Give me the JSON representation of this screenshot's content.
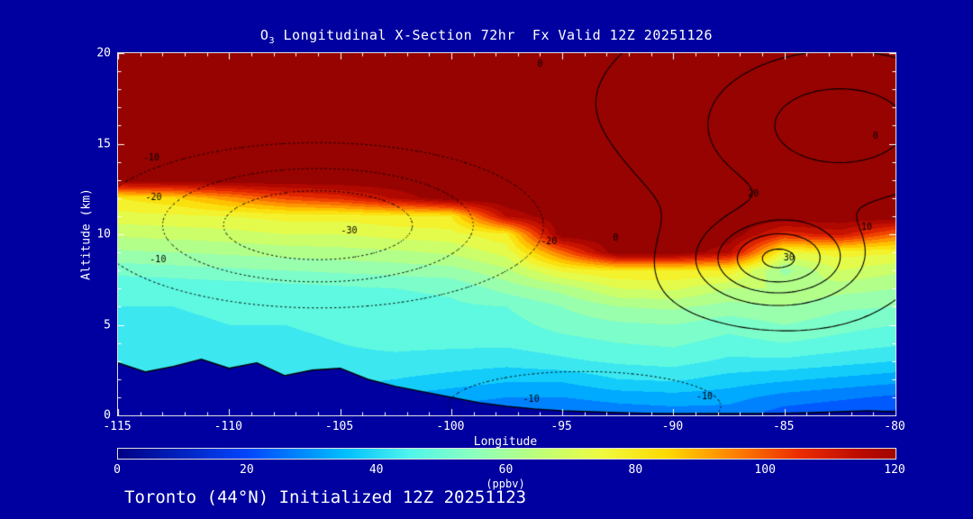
{
  "title": {
    "prefix": "O",
    "sub": "3",
    "rest": " Longitudinal X-Section 72hr  Fx Valid 12Z 20251126"
  },
  "footer": "Toronto (44°N) Initialized 12Z 20251123",
  "axes": {
    "x": {
      "label": "Longitude",
      "min": -115,
      "max": -80,
      "major_ticks": [
        -115,
        -110,
        -105,
        -100,
        -95,
        -90,
        -85,
        -80
      ],
      "minor_step": 1
    },
    "y": {
      "label": "Altitude (km)",
      "min": 0,
      "max": 20,
      "major_ticks": [
        0,
        5,
        10,
        15,
        20
      ],
      "minor_step": 1
    }
  },
  "colorbar": {
    "label": "(ppbv)",
    "min": 0,
    "max": 120,
    "ticks": [
      0,
      20,
      40,
      60,
      80,
      100,
      120
    ]
  },
  "colors": {
    "background": "#0000A0",
    "frame": "#E0E0E0",
    "text": "#FFFFFF",
    "contour": "#000000"
  },
  "chart_data": {
    "type": "heatmap",
    "title": "O3 Longitudinal X-Section 72hr Fx Valid 12Z 20251126",
    "xlabel": "Longitude",
    "ylabel": "Altitude (km)",
    "units": "ppbv",
    "xlim": [
      -115,
      -80
    ],
    "ylim": [
      0,
      20
    ],
    "lons": [
      -115,
      -112.5,
      -110,
      -107.5,
      -105,
      -102.5,
      -100,
      -97.5,
      -95,
      -92.5,
      -90,
      -87.5,
      -85,
      -82.5,
      -80
    ],
    "alts": [
      0,
      1,
      2,
      3,
      4,
      5,
      6,
      7,
      8,
      9,
      10,
      11,
      12,
      13,
      14,
      15,
      16,
      17,
      18,
      19,
      20
    ],
    "ozone_ppbv": [
      [
        30,
        29,
        30,
        31,
        32,
        28,
        26,
        25,
        24,
        26,
        27,
        27,
        22,
        20,
        18
      ],
      [
        35,
        34,
        36,
        37,
        38,
        34,
        32,
        30,
        30,
        32,
        33,
        32,
        28,
        26,
        24
      ],
      [
        40,
        40,
        41,
        42,
        42,
        40,
        38,
        36,
        36,
        40,
        41,
        38,
        36,
        34,
        32
      ],
      [
        45,
        42,
        43,
        43,
        44,
        44,
        43,
        42,
        44,
        46,
        47,
        44,
        44,
        42,
        40
      ],
      [
        45,
        42,
        44,
        44,
        45,
        46,
        46,
        46,
        48,
        50,
        51,
        48,
        50,
        48,
        46
      ],
      [
        45,
        44,
        45,
        45,
        46,
        47,
        48,
        48,
        52,
        54,
        55,
        52,
        55,
        52,
        50
      ],
      [
        45,
        45,
        46,
        46,
        47,
        48,
        49,
        50,
        55,
        60,
        61,
        58,
        60,
        56,
        55
      ],
      [
        45,
        46,
        47,
        48,
        49,
        50,
        51,
        57,
        62,
        70,
        71,
        65,
        65,
        62,
        60
      ],
      [
        52,
        53,
        54,
        55,
        56,
        57,
        58,
        64,
        76,
        80,
        80,
        79,
        58,
        70,
        66
      ],
      [
        59,
        60,
        61,
        62,
        63,
        64,
        66,
        72,
        98,
        125,
        125,
        116,
        75,
        77,
        76
      ],
      [
        66,
        67,
        68,
        70,
        70,
        72,
        73,
        79,
        125,
        125,
        125,
        125,
        107,
        112,
        98
      ],
      [
        73,
        74,
        75,
        77,
        77,
        79,
        80,
        116,
        125,
        125,
        125,
        125,
        125,
        125,
        125
      ],
      [
        80,
        84,
        93,
        102,
        107,
        116,
        125,
        125,
        125,
        125,
        125,
        125,
        125,
        125,
        125
      ],
      [
        125,
        125,
        125,
        125,
        125,
        125,
        125,
        125,
        125,
        125,
        125,
        125,
        125,
        125,
        125
      ],
      [
        125,
        125,
        125,
        125,
        125,
        125,
        125,
        125,
        125,
        125,
        125,
        125,
        125,
        125,
        125
      ],
      [
        125,
        125,
        125,
        125,
        125,
        125,
        125,
        125,
        125,
        125,
        125,
        125,
        125,
        125,
        125
      ],
      [
        125,
        125,
        125,
        125,
        125,
        125,
        125,
        125,
        125,
        125,
        125,
        125,
        125,
        125,
        125
      ],
      [
        125,
        125,
        125,
        125,
        125,
        125,
        125,
        125,
        125,
        125,
        125,
        125,
        125,
        125,
        125
      ],
      [
        125,
        125,
        125,
        125,
        125,
        125,
        125,
        125,
        125,
        125,
        125,
        125,
        125,
        125,
        125
      ],
      [
        125,
        125,
        125,
        125,
        125,
        125,
        125,
        125,
        125,
        125,
        125,
        125,
        125,
        125,
        125
      ],
      [
        125,
        125,
        125,
        125,
        125,
        125,
        125,
        125,
        125,
        125,
        125,
        125,
        125,
        125,
        125
      ]
    ],
    "terrain_lons": [
      -115,
      -113.75,
      -112.5,
      -111.25,
      -110,
      -108.75,
      -107.5,
      -106.25,
      -105,
      -103.75,
      -102.5,
      -101.25,
      -100,
      -98.75,
      -97.5,
      -96.25,
      -95,
      -93.75,
      -92.5,
      -91.25,
      -90,
      -88.75,
      -87.5,
      -86.25,
      -85,
      -83.75,
      -82.5,
      -81.25,
      -80
    ],
    "terrain_km": [
      2.9,
      2.4,
      2.7,
      3.1,
      2.6,
      2.9,
      2.2,
      2.5,
      2.6,
      2.0,
      1.6,
      1.3,
      1.0,
      0.7,
      0.5,
      0.35,
      0.25,
      0.2,
      0.15,
      0.12,
      0.1,
      0.1,
      0.1,
      0.1,
      0.12,
      0.15,
      0.2,
      0.25,
      0.2
    ],
    "colormap": [
      [
        0,
        "#000082"
      ],
      [
        20,
        "#0046FF"
      ],
      [
        35,
        "#00BEFF"
      ],
      [
        45,
        "#50F5EB"
      ],
      [
        55,
        "#8CFFBE"
      ],
      [
        65,
        "#BEFF78"
      ],
      [
        75,
        "#F0FA3C"
      ],
      [
        85,
        "#FFD700"
      ],
      [
        95,
        "#FF8200"
      ],
      [
        105,
        "#EB2D00"
      ],
      [
        115,
        "#B90A00"
      ],
      [
        125,
        "#8B0000"
      ]
    ],
    "band_step_ppbv": 5,
    "overlay_contours": {
      "bias": -1.2,
      "gaussians": [
        {
          "amp": -37,
          "lon": -106.0,
          "alt": 10.5,
          "slon": 8.5,
          "salt": 3.8
        },
        {
          "amp": -14,
          "lon": -94.0,
          "alt": 0.5,
          "slon": 9.0,
          "salt": 2.8
        },
        {
          "amp": 42,
          "lon": -85.3,
          "alt": 8.6,
          "slon": 3.2,
          "salt": 2.2
        },
        {
          "amp": 26,
          "lon": -82.5,
          "alt": 16.0,
          "slon": 6.5,
          "salt": 4.5
        }
      ],
      "dotted_levels": [
        -40,
        -30,
        -20,
        -10
      ],
      "solid_levels": [
        0,
        10,
        20,
        30,
        40
      ],
      "labels": [
        {
          "lon": -96.0,
          "alt": 19.4,
          "text": "0"
        },
        {
          "lon": -113.5,
          "alt": 14.2,
          "text": "-10"
        },
        {
          "lon": -113.4,
          "alt": 12.0,
          "text": "-20"
        },
        {
          "lon": -104.6,
          "alt": 10.2,
          "text": "-30"
        },
        {
          "lon": -113.2,
          "alt": 8.6,
          "text": "-10"
        },
        {
          "lon": -95.6,
          "alt": 9.6,
          "text": "-20"
        },
        {
          "lon": -92.6,
          "alt": 9.8,
          "text": "0"
        },
        {
          "lon": -86.4,
          "alt": 12.2,
          "text": "20"
        },
        {
          "lon": -84.8,
          "alt": 8.7,
          "text": "30"
        },
        {
          "lon": -96.4,
          "alt": 0.9,
          "text": "-10"
        },
        {
          "lon": -88.6,
          "alt": 1.0,
          "text": "-10"
        },
        {
          "lon": -80.9,
          "alt": 15.4,
          "text": "0"
        },
        {
          "lon": -81.3,
          "alt": 10.4,
          "text": "10"
        }
      ]
    }
  }
}
